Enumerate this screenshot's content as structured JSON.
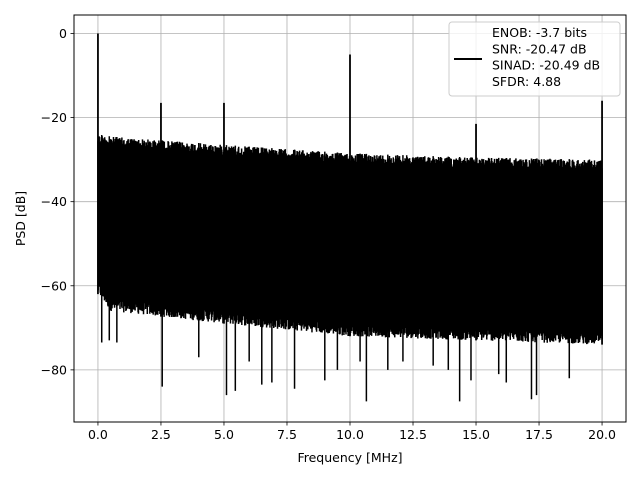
{
  "chart_data": {
    "type": "line",
    "title": "",
    "xlabel": "Frequency [MHz]",
    "ylabel": "PSD [dB]",
    "xlim": [
      -0.95,
      20.95
    ],
    "ylim": [
      -92.4,
      4.4
    ],
    "grid": true,
    "line_color": "#000000",
    "x_ticks": [
      0.0,
      2.5,
      5.0,
      7.5,
      10.0,
      12.5,
      15.0,
      17.5,
      20.0
    ],
    "x_tick_labels": [
      "0.0",
      "2.5",
      "5.0",
      "7.5",
      "10.0",
      "12.5",
      "15.0",
      "17.5",
      "20.0"
    ],
    "y_ticks": [
      0,
      -20,
      -40,
      -60,
      -80
    ],
    "y_tick_labels": [
      "0",
      "−20",
      "−40",
      "−60",
      "−80"
    ],
    "legend": {
      "placement": "upper right",
      "lines": [
        "ENOB: -3.7 bits",
        "SNR: -20.47 dB",
        "SINAD: -20.49 dB",
        "SFDR: 4.88"
      ]
    },
    "series": [
      {
        "x_range": [
          0.0,
          20.0
        ],
        "noise_ceiling_db": {
          "x": [
            0.0,
            0.5,
            5.0,
            10.0,
            15.0,
            20.0
          ],
          "y": [
            -24.0,
            -24.5,
            -26.5,
            -28.5,
            -29.5,
            -30.0
          ]
        },
        "noise_floor_db": {
          "x": [
            0.0,
            0.5,
            5.0,
            10.0,
            15.0,
            20.0
          ],
          "y": [
            -62.0,
            -66.0,
            -69.0,
            -72.0,
            -73.0,
            -74.0
          ]
        },
        "spikes": [
          {
            "x": 0.0,
            "y": 0.0
          },
          {
            "x": 2.5,
            "y": -16.5
          },
          {
            "x": 5.0,
            "y": -16.5
          },
          {
            "x": 10.0,
            "y": -5.0
          },
          {
            "x": 15.0,
            "y": -21.5
          },
          {
            "x": 20.0,
            "y": -16.0
          }
        ],
        "dips": [
          {
            "x": 0.15,
            "y": -73.5
          },
          {
            "x": 0.45,
            "y": -73.0
          },
          {
            "x": 0.75,
            "y": -73.5
          },
          {
            "x": 2.55,
            "y": -84.0
          },
          {
            "x": 4.0,
            "y": -77.0
          },
          {
            "x": 5.1,
            "y": -86.0
          },
          {
            "x": 5.45,
            "y": -85.0
          },
          {
            "x": 6.0,
            "y": -78.0
          },
          {
            "x": 6.5,
            "y": -83.5
          },
          {
            "x": 6.9,
            "y": -83.0
          },
          {
            "x": 7.8,
            "y": -84.5
          },
          {
            "x": 9.0,
            "y": -82.5
          },
          {
            "x": 9.5,
            "y": -80.0
          },
          {
            "x": 10.4,
            "y": -78.0
          },
          {
            "x": 10.65,
            "y": -87.5
          },
          {
            "x": 11.5,
            "y": -80.0
          },
          {
            "x": 12.1,
            "y": -78.0
          },
          {
            "x": 13.3,
            "y": -79.0
          },
          {
            "x": 13.9,
            "y": -80.0
          },
          {
            "x": 14.35,
            "y": -87.5
          },
          {
            "x": 14.8,
            "y": -82.5
          },
          {
            "x": 15.9,
            "y": -81.0
          },
          {
            "x": 16.2,
            "y": -83.0
          },
          {
            "x": 17.2,
            "y": -87.0
          },
          {
            "x": 17.4,
            "y": -86.0
          },
          {
            "x": 18.7,
            "y": -82.0
          }
        ]
      }
    ]
  }
}
